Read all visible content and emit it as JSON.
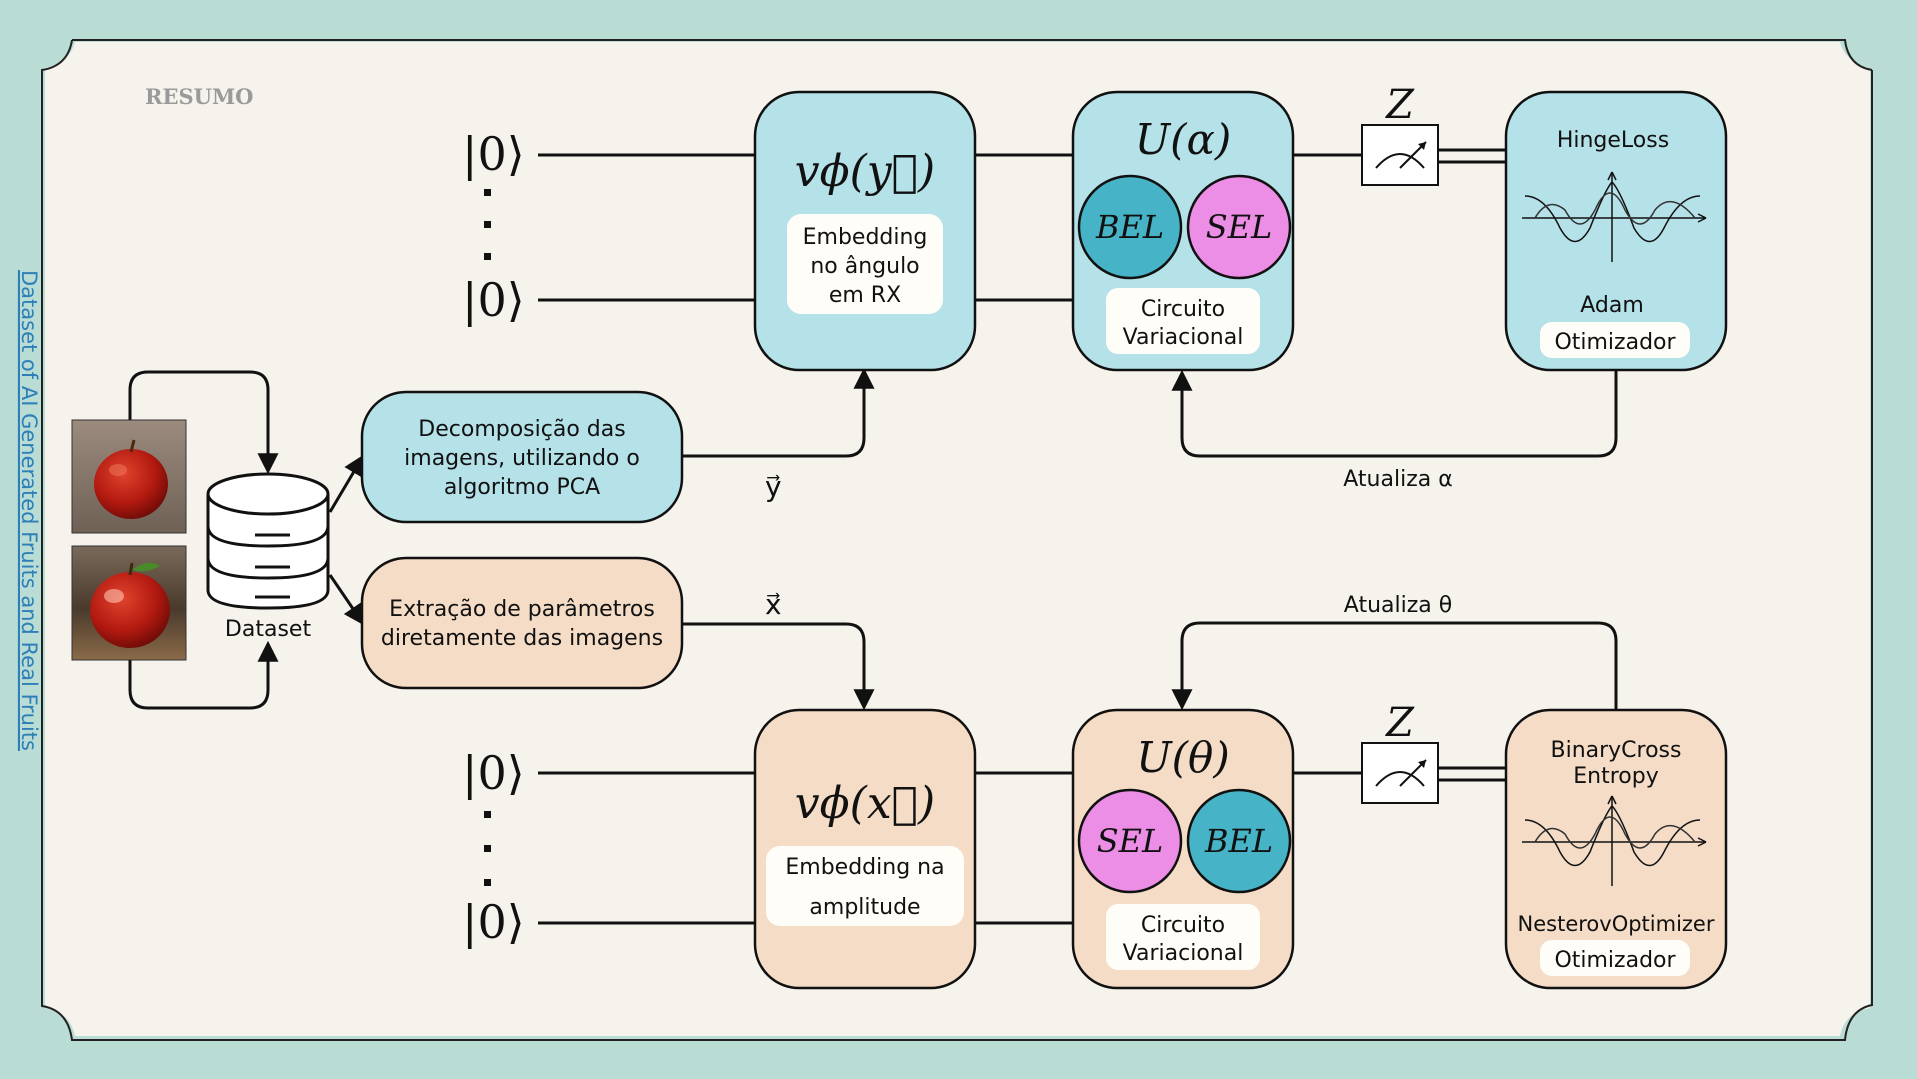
{
  "header": {
    "section_label": "RESUMO"
  },
  "side_link": {
    "text": "Dataset of AI Generated Fruits and Real Fruits"
  },
  "dataset": {
    "label": "Dataset"
  },
  "top_branch": {
    "preprocess": [
      "Decomposição das",
      "imagens, utilizando o",
      "algoritmo PCA"
    ],
    "vector": "y⃗",
    "ket_top": "|0⟩",
    "ket_bottom": "|0⟩",
    "embedding_title": "vϕ(y⃗)",
    "embedding_desc": [
      "Embedding",
      "no ângulo",
      "em RX"
    ],
    "circuit_title": "U(α)",
    "circuit_left": "BEL",
    "circuit_right": "SEL",
    "circuit_desc": [
      "Circuito",
      "Variacional"
    ],
    "measure": "Z",
    "loss": "HingeLoss",
    "optimizer_name": "Adam",
    "optimizer_label": "Otimizador",
    "feedback": "Atualiza α"
  },
  "bottom_branch": {
    "preprocess": [
      "Extração de parâmetros",
      "diretamente das imagens"
    ],
    "vector": "x⃗",
    "ket_top": "|0⟩",
    "ket_bottom": "|0⟩",
    "embedding_title": "vϕ(x⃗)",
    "embedding_desc": [
      "Embedding na",
      "amplitude"
    ],
    "circuit_title": "U(θ)",
    "circuit_left": "SEL",
    "circuit_right": "BEL",
    "circuit_desc": [
      "Circuito",
      "Variacional"
    ],
    "measure": "Z",
    "loss": [
      "BinaryCross",
      "Entropy"
    ],
    "optimizer_name": "NesterovOptimizer",
    "optimizer_label": "Otimizador",
    "feedback": "Atualiza θ"
  },
  "colors": {
    "background": "#b9dcd5",
    "card": "#f6f2ec",
    "blue_box": "#b5e1e8",
    "peach_box": "#f4dcc6",
    "teal_circle": "#46b3c6",
    "pink_circle": "#ec8de6",
    "link": "#2e7fb8"
  }
}
